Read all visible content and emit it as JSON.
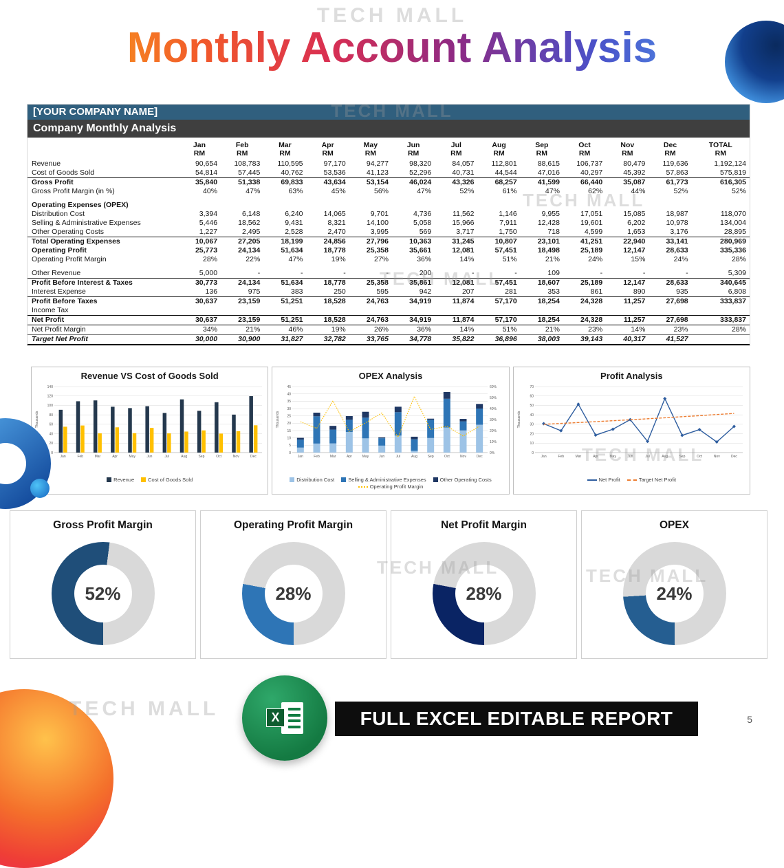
{
  "watermark": "TECH MALL",
  "title": "Monthly Account Analysis",
  "report": {
    "company_name": "[YOUR COMPANY NAME]",
    "subtitle": "Company Monthly Analysis",
    "unit": "RM",
    "columns": [
      "Jan",
      "Feb",
      "Mar",
      "Apr",
      "May",
      "Jun",
      "Jul",
      "Aug",
      "Sep",
      "Oct",
      "Nov",
      "Dec",
      "TOTAL"
    ],
    "rows": [
      {
        "label": "Revenue",
        "kind": "data",
        "values": [
          "90,654",
          "108,783",
          "110,595",
          "97,170",
          "94,277",
          "98,320",
          "84,057",
          "112,801",
          "88,615",
          "106,737",
          "80,479",
          "119,636",
          "1,192,124"
        ]
      },
      {
        "label": "Cost of Goods Sold",
        "kind": "data",
        "values": [
          "54,814",
          "57,445",
          "40,762",
          "53,536",
          "41,123",
          "52,296",
          "40,731",
          "44,544",
          "47,016",
          "40,297",
          "45,392",
          "57,863",
          "575,819"
        ]
      },
      {
        "label": "Gross Profit",
        "kind": "subtotal",
        "values": [
          "35,840",
          "51,338",
          "69,833",
          "43,634",
          "53,154",
          "46,024",
          "43,326",
          "68,257",
          "41,599",
          "66,440",
          "35,087",
          "61,773",
          "616,305"
        ]
      },
      {
        "label": "Gross Profit Margin (in %)",
        "kind": "data",
        "values": [
          "40%",
          "47%",
          "63%",
          "45%",
          "56%",
          "47%",
          "52%",
          "61%",
          "47%",
          "62%",
          "44%",
          "52%",
          "52%"
        ]
      },
      {
        "label": "",
        "kind": "spacer",
        "values": []
      },
      {
        "label": "Operating Expenses (OPEX)",
        "kind": "section",
        "values": []
      },
      {
        "label": "Distribution Cost",
        "kind": "data",
        "values": [
          "3,394",
          "6,148",
          "6,240",
          "14,065",
          "9,701",
          "4,736",
          "11,562",
          "1,146",
          "9,955",
          "17,051",
          "15,085",
          "18,987",
          "118,070"
        ]
      },
      {
        "label": "Selling & Administrative Expenses",
        "kind": "data",
        "values": [
          "5,446",
          "18,562",
          "9,431",
          "8,321",
          "14,100",
          "5,058",
          "15,966",
          "7,911",
          "12,428",
          "19,601",
          "6,202",
          "10,978",
          "134,004"
        ]
      },
      {
        "label": "Other Operating Costs",
        "kind": "data",
        "values": [
          "1,227",
          "2,495",
          "2,528",
          "2,470",
          "3,995",
          "569",
          "3,717",
          "1,750",
          "718",
          "4,599",
          "1,653",
          "3,176",
          "28,895"
        ]
      },
      {
        "label": "Total Operating Expenses",
        "kind": "subtotal",
        "values": [
          "10,067",
          "27,205",
          "18,199",
          "24,856",
          "27,796",
          "10,363",
          "31,245",
          "10,807",
          "23,101",
          "41,251",
          "22,940",
          "33,141",
          "280,969"
        ]
      },
      {
        "label": "Operating Profit",
        "kind": "bold",
        "values": [
          "25,773",
          "24,134",
          "51,634",
          "18,778",
          "25,358",
          "35,661",
          "12,081",
          "57,451",
          "18,498",
          "25,189",
          "12,147",
          "28,633",
          "335,336"
        ]
      },
      {
        "label": "Operating Profit Margin",
        "kind": "data",
        "values": [
          "28%",
          "22%",
          "47%",
          "19%",
          "27%",
          "36%",
          "14%",
          "51%",
          "21%",
          "24%",
          "15%",
          "24%",
          "28%"
        ]
      },
      {
        "label": "",
        "kind": "spacer",
        "values": []
      },
      {
        "label": "Other Revenue",
        "kind": "data",
        "values": [
          "5,000",
          "-",
          "-",
          "-",
          "-",
          "200",
          "-",
          "-",
          "109",
          "-",
          "-",
          "-",
          "5,309"
        ]
      },
      {
        "label": "Profit Before Interest & Taxes",
        "kind": "subtotal",
        "values": [
          "30,773",
          "24,134",
          "51,634",
          "18,778",
          "25,358",
          "35,861",
          "12,081",
          "57,451",
          "18,607",
          "25,189",
          "12,147",
          "28,633",
          "340,645"
        ]
      },
      {
        "label": "Interest Expense",
        "kind": "data",
        "values": [
          "136",
          "975",
          "383",
          "250",
          "595",
          "942",
          "207",
          "281",
          "353",
          "861",
          "890",
          "935",
          "6,808"
        ]
      },
      {
        "label": "Profit Before Taxes",
        "kind": "subtotal",
        "values": [
          "30,637",
          "23,159",
          "51,251",
          "18,528",
          "24,763",
          "34,919",
          "11,874",
          "57,170",
          "18,254",
          "24,328",
          "11,257",
          "27,698",
          "333,837"
        ]
      },
      {
        "label": "Income Tax",
        "kind": "data",
        "values": [
          "",
          "",
          "",
          "",
          "",
          "",
          "",
          "",
          "",
          "",
          "",
          "",
          ""
        ]
      },
      {
        "label": "Net Profit",
        "kind": "net",
        "values": [
          "30,637",
          "23,159",
          "51,251",
          "18,528",
          "24,763",
          "34,919",
          "11,874",
          "57,170",
          "18,254",
          "24,328",
          "11,257",
          "27,698",
          "333,837"
        ]
      },
      {
        "label": "Net Profit Margin",
        "kind": "data",
        "values": [
          "34%",
          "21%",
          "46%",
          "19%",
          "26%",
          "36%",
          "14%",
          "51%",
          "21%",
          "23%",
          "14%",
          "23%",
          "28%"
        ]
      },
      {
        "label": "Target Net Profit",
        "kind": "target",
        "values": [
          "30,000",
          "30,900",
          "31,827",
          "32,782",
          "33,765",
          "34,778",
          "35,822",
          "36,896",
          "38,003",
          "39,143",
          "40,317",
          "41,527",
          ""
        ]
      }
    ]
  },
  "chart_data": [
    {
      "type": "bar",
      "title": "Revenue VS Cost of Goods Sold",
      "ylabel": "Thousands",
      "units": "RM thousands",
      "ylim": [
        0,
        140
      ],
      "ytick": 20,
      "grid": true,
      "legend_position": "bottom",
      "categories": [
        "Jan",
        "Feb",
        "Mar",
        "Apr",
        "May",
        "Jun",
        "Jul",
        "Aug",
        "Sep",
        "Oct",
        "Nov",
        "Dec"
      ],
      "series": [
        {
          "name": "Revenue",
          "color": "#24384D",
          "values": [
            90.654,
            108.783,
            110.595,
            97.17,
            94.277,
            98.32,
            84.057,
            112.801,
            88.615,
            106.737,
            80.479,
            119.636
          ]
        },
        {
          "name": "Cost of Goods Sold",
          "color": "#FFC000",
          "values": [
            54.814,
            57.445,
            40.762,
            53.536,
            41.123,
            52.296,
            40.731,
            44.544,
            47.016,
            40.297,
            45.392,
            57.863
          ]
        }
      ]
    },
    {
      "type": "stacked-bar-line",
      "title": "OPEX Analysis",
      "ylabel": "Thousands",
      "units": "RM thousands",
      "ylim": [
        0,
        45
      ],
      "ytick": 5,
      "y2lim": [
        0,
        60
      ],
      "y2tick": 10,
      "grid": true,
      "legend_position": "bottom",
      "categories": [
        "Jan",
        "Feb",
        "Mar",
        "Apr",
        "May",
        "Jun",
        "Jul",
        "Aug",
        "Sep",
        "Oct",
        "Nov",
        "Dec"
      ],
      "bar_series": [
        {
          "name": "Distribution Cost",
          "color": "#9DC3E6",
          "values": [
            3.394,
            6.148,
            6.24,
            14.065,
            9.701,
            4.736,
            11.562,
            1.146,
            9.955,
            17.051,
            15.085,
            18.987
          ]
        },
        {
          "name": "Selling & Administrative Expenses",
          "color": "#2E75B6",
          "values": [
            5.446,
            18.562,
            9.431,
            8.321,
            14.1,
            5.058,
            15.966,
            7.911,
            12.428,
            19.601,
            6.202,
            10.978
          ]
        },
        {
          "name": "Other Operating Costs",
          "color": "#1F3864",
          "values": [
            1.227,
            2.495,
            2.528,
            2.47,
            3.995,
            0.569,
            3.717,
            1.75,
            0.718,
            4.599,
            1.653,
            3.176
          ]
        }
      ],
      "line_series": [
        {
          "name": "Operating Profit Margin",
          "color": "#FFC000",
          "dash": "dotted",
          "values": [
            28,
            22,
            47,
            19,
            27,
            36,
            14,
            51,
            21,
            24,
            15,
            24
          ]
        }
      ]
    },
    {
      "type": "line",
      "title": "Profit Analysis",
      "ylabel": "Thousands",
      "units": "RM thousands",
      "ylim": [
        0,
        70
      ],
      "ytick": 10,
      "grid": true,
      "legend_position": "bottom",
      "categories": [
        "Jan",
        "Feb",
        "Mar",
        "Apr",
        "May",
        "Jun",
        "Jul",
        "Aug",
        "Sep",
        "Oct",
        "Nov",
        "Dec"
      ],
      "series": [
        {
          "name": "Net Profit",
          "color": "#2E5D9F",
          "marker": true,
          "values": [
            30.637,
            23.159,
            51.251,
            18.528,
            24.763,
            34.919,
            11.874,
            57.17,
            18.254,
            24.328,
            11.257,
            27.698
          ]
        },
        {
          "name": "Target Net Profit",
          "color": "#ED7D31",
          "dash": "dashed",
          "values": [
            30,
            30.9,
            31.827,
            32.782,
            33.765,
            34.778,
            35.822,
            36.896,
            38.003,
            39.143,
            40.317,
            41.527
          ]
        }
      ]
    }
  ],
  "gauges": [
    {
      "label": "Gross Profit Margin",
      "value": 52,
      "display": "52%",
      "color": "#1F4E79"
    },
    {
      "label": "Operating Profit Margin",
      "value": 28,
      "display": "28%",
      "color": "#2E75B6"
    },
    {
      "label": "Net Profit Margin",
      "value": 28,
      "display": "28%",
      "color": "#0A2464"
    },
    {
      "label": "OPEX",
      "value": 24,
      "display": "24%",
      "color": "#255E91"
    }
  ],
  "footer": {
    "banner": "FULL EXCEL EDITABLE REPORT",
    "page": "5",
    "excel_logo_letter": "X"
  }
}
